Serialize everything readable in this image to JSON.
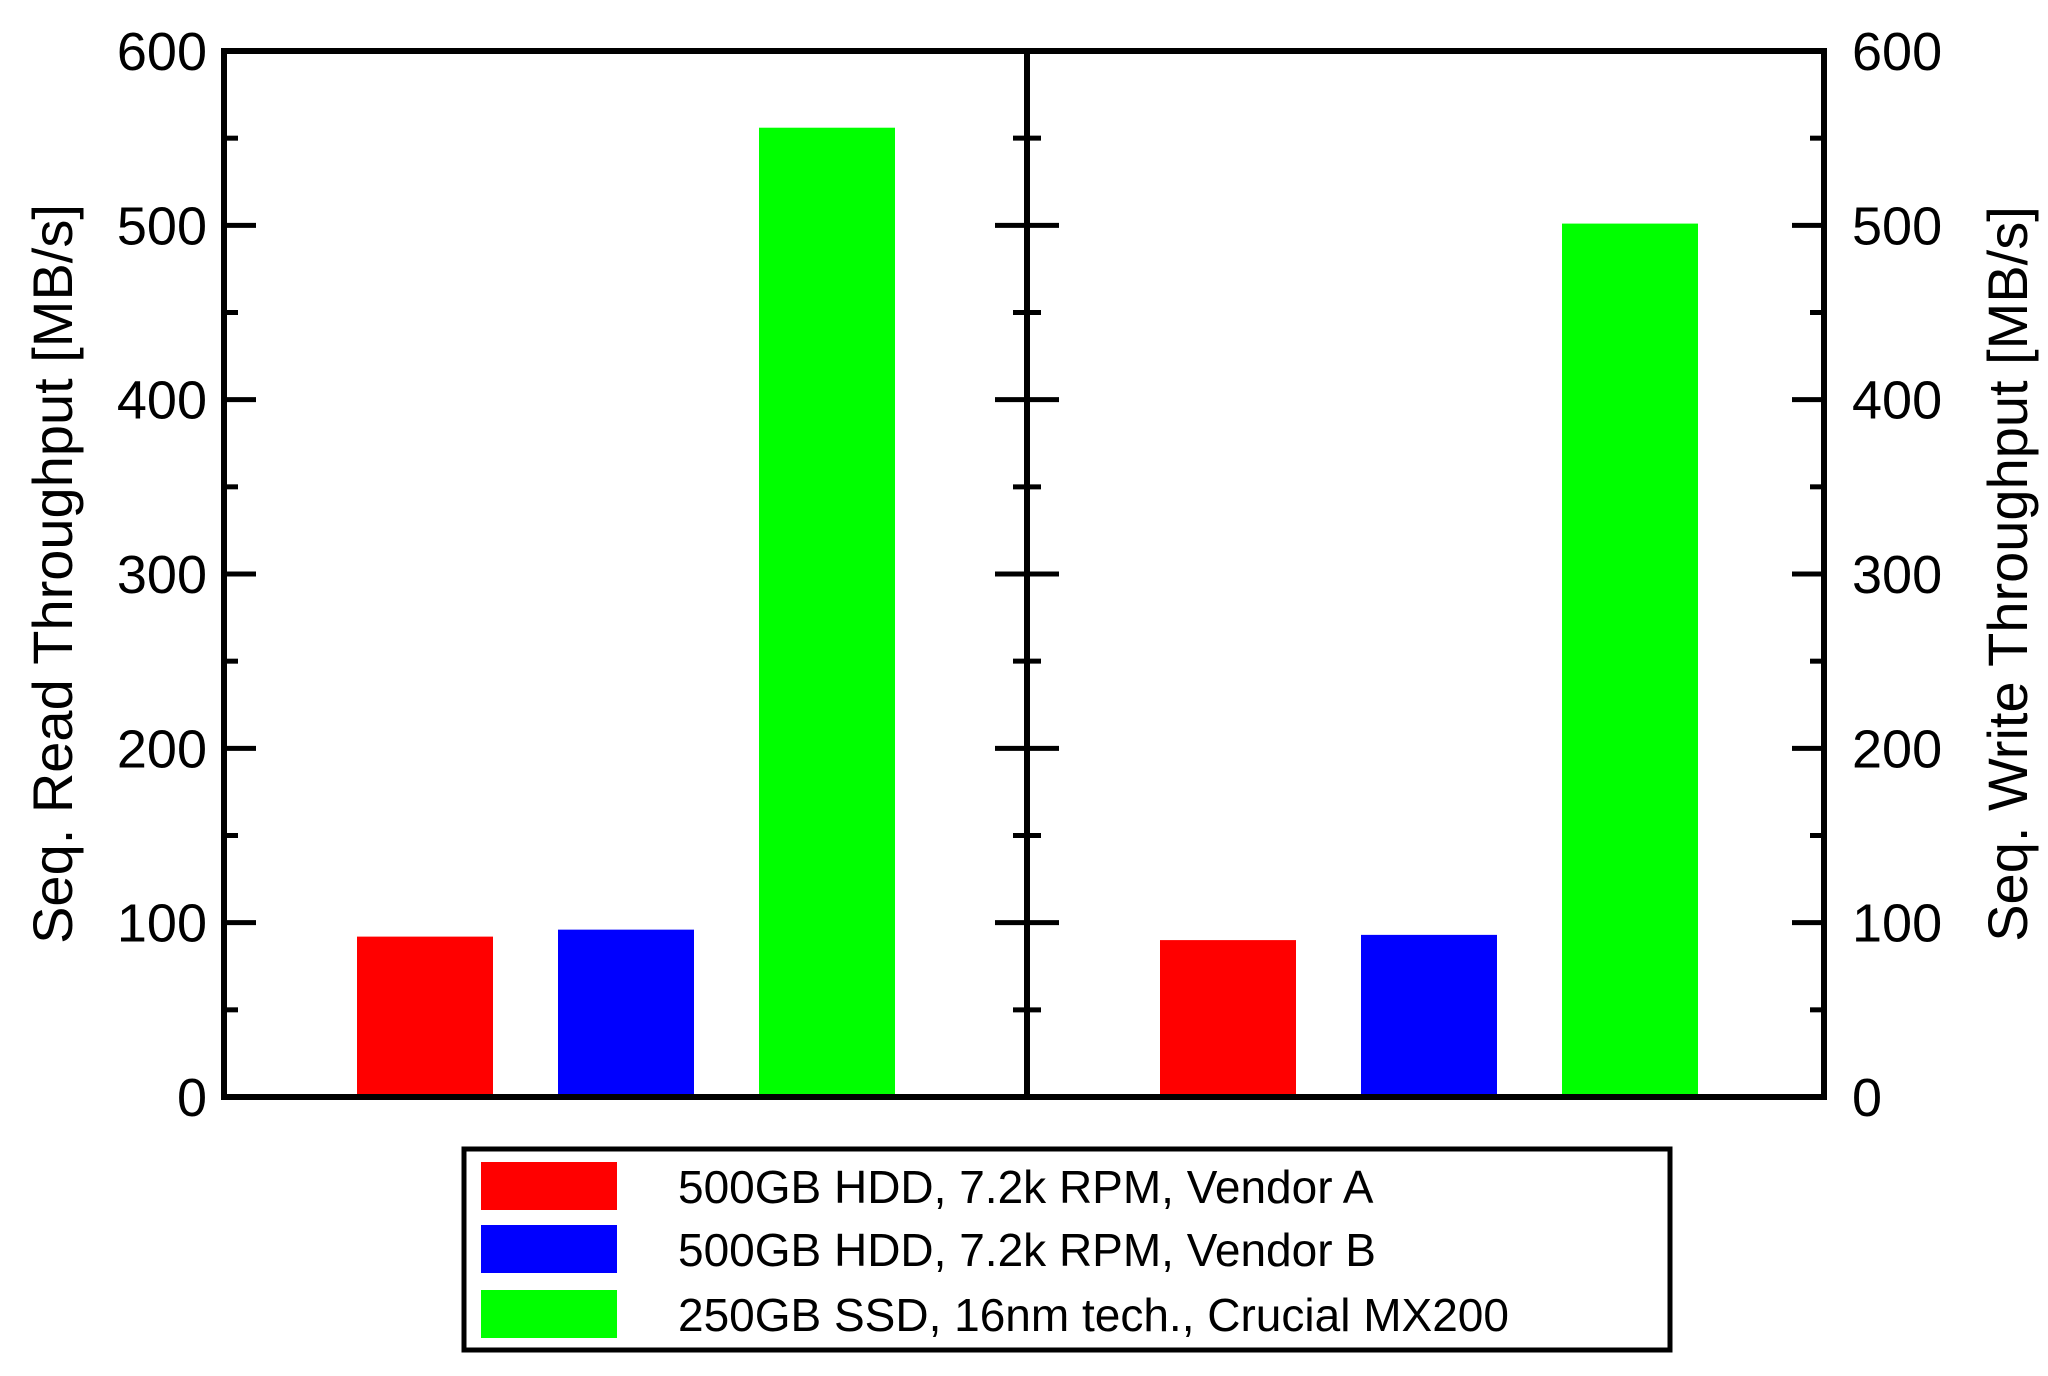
{
  "chart_data": {
    "type": "bar",
    "layout": "two-panel side by side, shared legend below",
    "ylim": [
      0,
      600
    ],
    "yticks": [
      "0",
      "100",
      "200",
      "300",
      "400",
      "500",
      "600"
    ],
    "ylabel_left": "Seq. Read Throughput [MB/s]",
    "ylabel_right": "Seq. Write Throughput [MB/s]",
    "grid": false,
    "legend_position": "bottom-center",
    "series": [
      {
        "name": "500GB HDD, 7.2k RPM, Vendor A",
        "color": "#ff0000"
      },
      {
        "name": "500GB HDD, 7.2k RPM, Vendor B",
        "color": "#0000ff"
      },
      {
        "name": "250GB SSD, 16nm tech., Crucial MX200",
        "color": "#00ff00"
      }
    ],
    "panels": [
      {
        "metric": "read",
        "values": [
          92,
          96,
          556
        ]
      },
      {
        "metric": "write",
        "values": [
          90,
          93,
          501
        ]
      }
    ]
  }
}
